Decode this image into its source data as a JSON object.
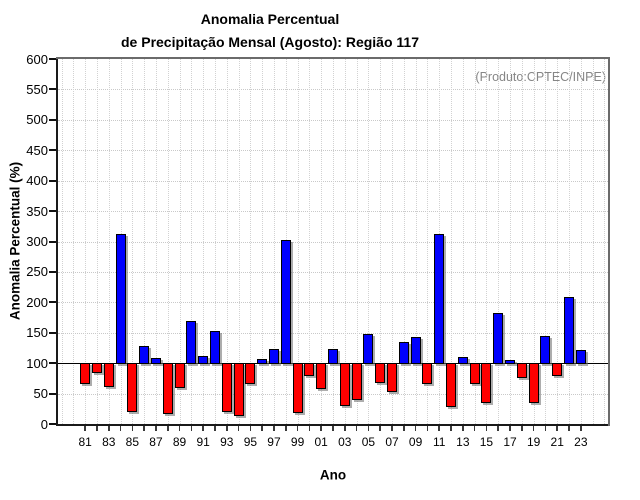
{
  "chart_data": {
    "type": "bar",
    "title_lines": [
      "Anomalia Percentual",
      "de Precipitação Mensal (Agosto): Região 117"
    ],
    "title": "Anomalia Percentual de Precipitação Mensal (Agosto): Região 117",
    "product_note": "(Produto:CPTEC/INPE)",
    "xlabel": "Ano",
    "ylabel": "Anomalia Percentual (%)",
    "ylim": [
      0,
      600
    ],
    "y_ticks": [
      0,
      50,
      100,
      150,
      200,
      250,
      300,
      350,
      400,
      450,
      500,
      550,
      600
    ],
    "baseline": 100,
    "grid": "dotted",
    "legend_position": "none",
    "x_tick_labels": [
      "81",
      "83",
      "85",
      "87",
      "89",
      "91",
      "93",
      "95",
      "97",
      "99",
      "01",
      "03",
      "05",
      "07",
      "09",
      "11",
      "13",
      "15",
      "17",
      "19",
      "21",
      "23"
    ],
    "years": [
      1981,
      1982,
      1983,
      1984,
      1985,
      1986,
      1987,
      1988,
      1989,
      1990,
      1991,
      1992,
      1993,
      1994,
      1995,
      1996,
      1997,
      1998,
      1999,
      2000,
      2001,
      2002,
      2003,
      2004,
      2005,
      2006,
      2007,
      2008,
      2009,
      2010,
      2011,
      2012,
      2013,
      2014,
      2015,
      2016,
      2017,
      2018,
      2019,
      2020,
      2021,
      2022,
      2023
    ],
    "values": [
      67,
      85,
      62,
      312,
      22,
      128,
      108,
      18,
      61,
      169,
      112,
      153,
      21,
      14,
      68,
      107,
      124,
      302,
      19,
      81,
      59,
      123,
      32,
      41,
      148,
      69,
      55,
      135,
      143,
      67,
      313,
      29,
      110,
      67,
      36,
      182,
      106,
      78,
      36,
      145,
      81,
      208,
      122
    ],
    "colors": {
      "above_baseline": "#0000fe",
      "below_baseline": "#fe0000",
      "bar_outline": "#000000",
      "grid": "#cccccc",
      "product_note_text": "#868686"
    }
  }
}
